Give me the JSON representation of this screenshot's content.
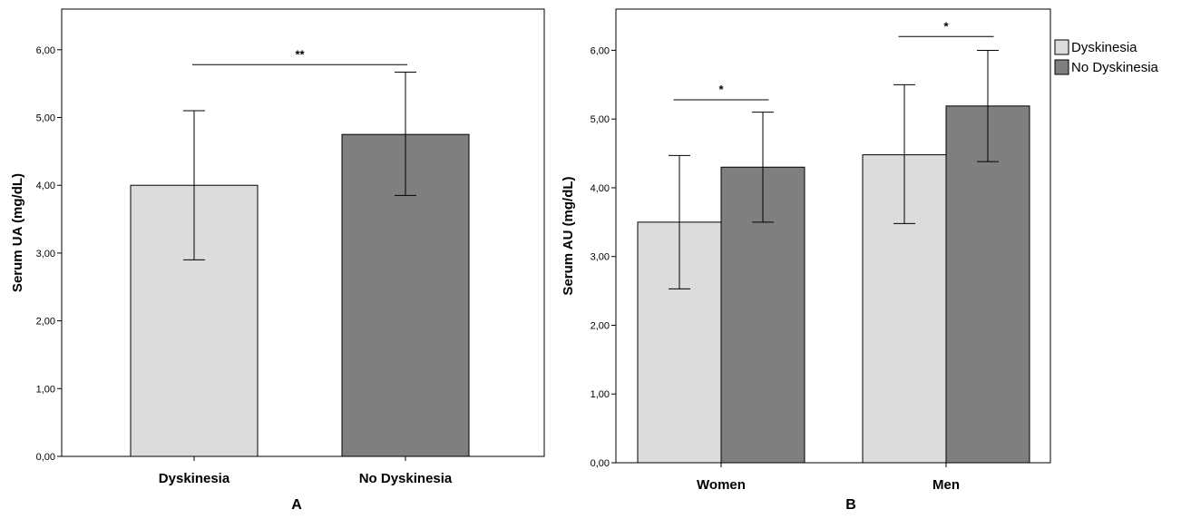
{
  "chart_data": [
    {
      "type": "bar",
      "panel_label": "A",
      "ylabel": "Serum UA (mg/dL)",
      "xlabel": "",
      "ylim": [
        0,
        6.6
      ],
      "yticks": [
        "0,00",
        "1,00",
        "2,00",
        "3,00",
        "4,00",
        "5,00",
        "6,00"
      ],
      "categories": [
        "Dyskinesia",
        "No Dyskinesia"
      ],
      "series": [
        {
          "values": [
            4.0,
            4.75
          ],
          "error_low": [
            2.9,
            3.85
          ],
          "error_high": [
            5.1,
            5.67
          ],
          "colors": [
            "#dcdcdc",
            "#7f7f7f"
          ]
        }
      ],
      "significance": [
        {
          "label": "**",
          "from": 0,
          "to": 1,
          "y": 5.78
        }
      ],
      "grid": false
    },
    {
      "type": "bar",
      "panel_label": "B",
      "ylabel": "Serum AU (mg/dL)",
      "xlabel": "",
      "ylim": [
        0,
        6.6
      ],
      "yticks": [
        "0,00",
        "1,00",
        "2,00",
        "3,00",
        "4,00",
        "5,00",
        "6,00"
      ],
      "categories": [
        "Women",
        "Men"
      ],
      "series": [
        {
          "name": "Dyskinesia",
          "color": "#dcdcdc",
          "values": [
            3.5,
            4.48
          ],
          "error_low": [
            2.53,
            3.48
          ],
          "error_high": [
            4.47,
            5.5
          ]
        },
        {
          "name": "No Dyskinesia",
          "color": "#7f7f7f",
          "values": [
            4.3,
            5.19
          ],
          "error_low": [
            3.5,
            4.38
          ],
          "error_high": [
            5.1,
            6.0
          ]
        }
      ],
      "significance": [
        {
          "label": "*",
          "category": 0,
          "y": 5.28
        },
        {
          "label": "*",
          "category": 1,
          "y": 6.2
        }
      ],
      "legend": {
        "placement": "top-right-outside"
      },
      "grid": false
    }
  ]
}
